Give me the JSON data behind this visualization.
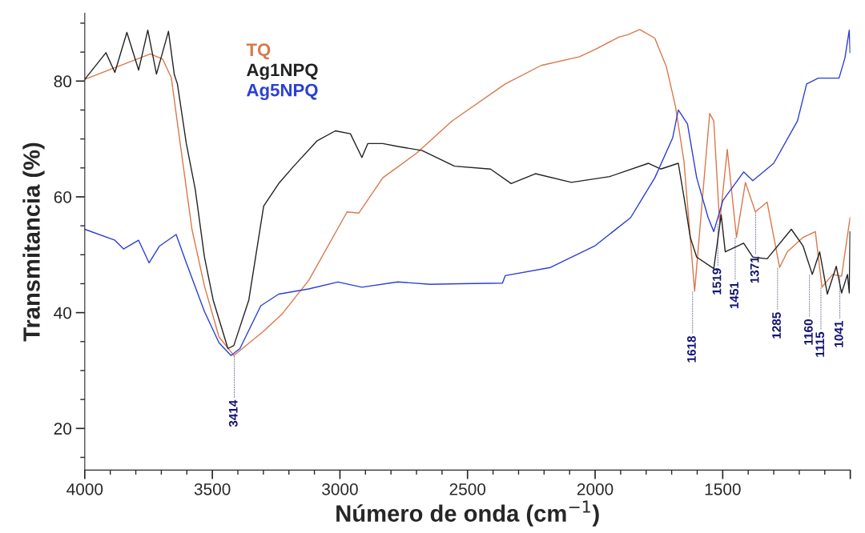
{
  "chart_data": {
    "type": "line",
    "xlabel": "Número de onda (cm$^{−1}$)",
    "ylabel": "Transmitancia (%)",
    "xlim": [
      4000,
      1000
    ],
    "ylim": [
      12.8,
      91.7
    ],
    "xticks": [
      4000,
      3500,
      3000,
      2500,
      2000,
      1500,
      {
        "value": 1000,
        "label": null
      }
    ],
    "yticks": [
      20,
      40,
      60,
      80
    ],
    "grid": false,
    "legend": "top left",
    "series": [
      {
        "name": "TQ",
        "color": "#d9784a",
        "x": [
          4000,
          3743,
          3695,
          3661,
          3626,
          3580,
          3531,
          3474,
          3416,
          3299,
          3228,
          3122,
          2972,
          2926,
          2832,
          2701,
          2561,
          2352,
          2211,
          2061,
          2002,
          1907,
          1872,
          1825,
          1766,
          1721,
          1685,
          1652,
          1610,
          1580,
          1551,
          1535,
          1512,
          1482,
          1446,
          1411,
          1372,
          1326,
          1277,
          1247,
          1185,
          1137,
          1111,
          1069,
          1034,
          1001
        ],
        "values": [
          80.3,
          84.7,
          83.8,
          80.6,
          69.2,
          54.4,
          44.6,
          35.8,
          32.6,
          36.8,
          39.7,
          45.6,
          57.4,
          57.2,
          63.3,
          67.5,
          73.1,
          79.5,
          82.7,
          84.2,
          85.4,
          87.6,
          88,
          88.9,
          87.4,
          82.5,
          75.6,
          66.2,
          43.7,
          59.4,
          74.4,
          73.1,
          55.4,
          68.2,
          53,
          62.5,
          57.4,
          59.1,
          47.8,
          50.5,
          53,
          54,
          44.4,
          46.6,
          46.3,
          56.4
        ]
      },
      {
        "name": "Ag1NPQ",
        "color": "#222222",
        "x": [
          4000,
          3917,
          3882,
          3835,
          3789,
          3753,
          3719,
          3672,
          3649,
          3637,
          3602,
          3567,
          3531,
          3497,
          3439,
          3416,
          3357,
          3299,
          3240,
          3181,
          3089,
          3018,
          2959,
          2914,
          2891,
          2832,
          2773,
          2678,
          2551,
          2410,
          2329,
          2234,
          2093,
          1943,
          1791,
          1743,
          1674,
          1652,
          1627,
          1602,
          1535,
          1506,
          1490,
          1418,
          1382,
          1326,
          1231,
          1185,
          1149,
          1120,
          1090,
          1055,
          1034,
          1011,
          1004,
          1001
        ],
        "values": [
          80.3,
          84.9,
          81.5,
          88.4,
          81.9,
          88.8,
          81.2,
          88.6,
          81.1,
          79.5,
          69.2,
          61.3,
          49.6,
          42.2,
          33.8,
          34.3,
          42.2,
          58.4,
          62.3,
          65.3,
          69.7,
          71.4,
          70.9,
          66.8,
          69.2,
          69.2,
          68.7,
          68,
          65.3,
          64.8,
          62.3,
          64,
          62.5,
          63.5,
          65.8,
          64.8,
          65.8,
          60,
          53,
          49.6,
          47.6,
          56.9,
          50.5,
          52,
          49.6,
          49.3,
          54.4,
          51.5,
          46.6,
          50.5,
          43.2,
          48,
          43.4,
          46.6,
          43.4,
          54
        ]
      },
      {
        "name": "Ag5NPQ",
        "color": "#2b3fd4",
        "x": [
          4000,
          3882,
          3848,
          3789,
          3748,
          3707,
          3642,
          3602,
          3531,
          3474,
          3427,
          3392,
          3310,
          3240,
          3122,
          3008,
          2914,
          2773,
          2645,
          2526,
          2363,
          2352,
          2175,
          2002,
          1861,
          1766,
          1696,
          1674,
          1638,
          1602,
          1557,
          1535,
          1499,
          1418,
          1382,
          1300,
          1207,
          1171,
          1126,
          1044,
          1021,
          1004,
          1001
        ],
        "values": [
          54.4,
          52.5,
          51,
          52.5,
          48.6,
          51.5,
          53.5,
          48.6,
          40.2,
          34.8,
          32.6,
          33.8,
          41.2,
          43.2,
          44.1,
          45.3,
          44.4,
          45.3,
          44.9,
          45,
          45.1,
          46.4,
          47.8,
          51.5,
          56.4,
          63.3,
          70.2,
          75,
          72.6,
          63.3,
          56.4,
          54,
          59.4,
          64.3,
          62.8,
          65.8,
          73.1,
          79.5,
          80.5,
          80.5,
          84,
          88.8,
          84.9
        ]
      }
    ],
    "annotations": [
      {
        "text": "3414",
        "x": 3414,
        "y": 32.6
      },
      {
        "text": "1618",
        "x": 1618,
        "y": 43.7
      },
      {
        "text": "1519",
        "x": 1519,
        "y": 55.4
      },
      {
        "text": "1451",
        "x": 1451,
        "y": 53
      },
      {
        "text": "1371",
        "x": 1371,
        "y": 57.4
      },
      {
        "text": "1285",
        "x": 1285,
        "y": 47.8
      },
      {
        "text": "1160",
        "x": 1160,
        "y": 46.6
      },
      {
        "text": "1115",
        "x": 1115,
        "y": 44.4
      },
      {
        "text": "1041",
        "x": 1041,
        "y": 46.3
      }
    ]
  }
}
